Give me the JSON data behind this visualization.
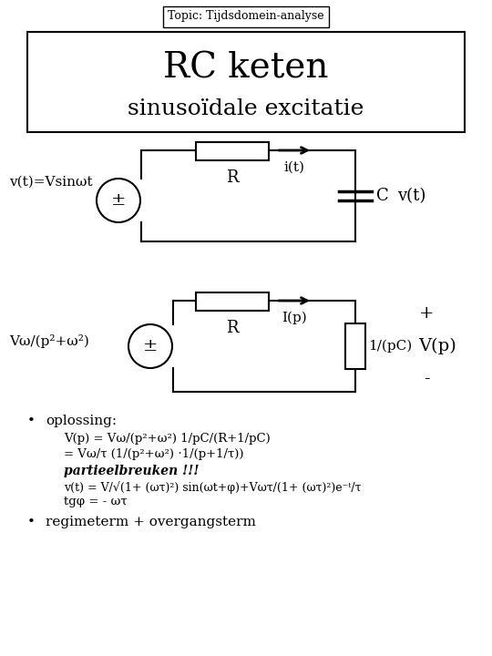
{
  "title_box": "Topic: Tijdsdomein-analyse",
  "main_title_line1": "RC keten",
  "main_title_line2": "sinusoïdale excitatie",
  "bg_color": "#ffffff",
  "text_color": "#000000",
  "circuit1": {
    "label_source": "v(t)=Vsinωt",
    "label_R": "R",
    "label_i": "i(t)",
    "label_C": "C",
    "label_vout": "v(t)"
  },
  "circuit2": {
    "label_source": "Vω/(p²+ω²)",
    "label_R": "R",
    "label_I": "I(p)",
    "label_Z": "1/(pC)",
    "label_Vp": "V(p)",
    "label_plus": "+",
    "label_minus": "-"
  },
  "bullet1_header": "oplossing:",
  "bullet1_line1": "V(p) = Vω/(p²+ω²) 1/pC/(R+1/pC)",
  "bullet1_line2": "= Vω/τ (1/(p²+ω²) ⋅1/(p+1/τ))",
  "bullet1_bold": "partieelbreuken !!!",
  "bullet1_line3": "v(t) = V/√(1+ (ωτ)²) sin(ωt+φ)+Vωτ/(1+ (ωτ)²)e⁻ᵗ/τ",
  "bullet1_line4": "tgφ = - ωτ",
  "bullet2": "regimeterm + overgangsterm"
}
